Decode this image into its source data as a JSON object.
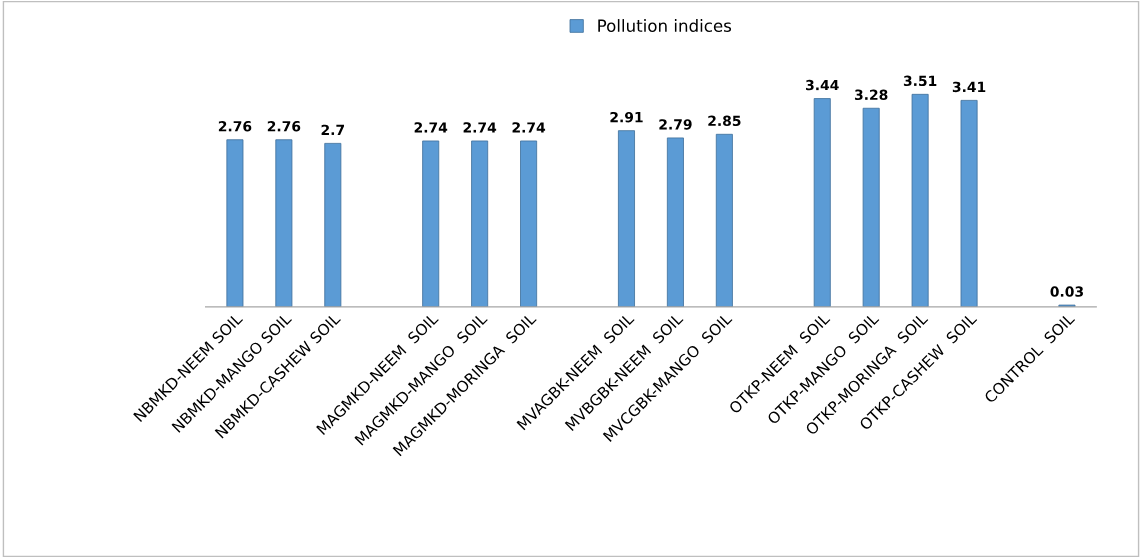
{
  "chart_data": {
    "type": "bar",
    "categories": [
      "NBMKD-NEEM SOIL",
      "NBMKD-MANGO SOIL",
      "NBMKD-CASHEW SOIL",
      null,
      "MAGMKD-NEEM  SOIL",
      "MAGMKD-MANGO  SOIL",
      "MAGMKD-MORINGA  SOIL",
      null,
      "MVAGBK-NEEM  SOIL",
      "MVBGBK-NEEM  SOIL",
      "MVCGBK-MANGO  SOIL",
      null,
      "OTKP-NEEM  SOIL",
      "OTKP-MANGO  SOIL",
      "OTKP-MORINGA  SOIL",
      "OTKP-CASHEW  SOIL",
      null,
      "CONTROL  SOIL"
    ],
    "series": [
      {
        "name": "Pollution indices",
        "color": "#5b9bd5",
        "values": [
          2.76,
          2.76,
          2.7,
          null,
          2.74,
          2.74,
          2.74,
          null,
          2.91,
          2.79,
          2.85,
          null,
          3.44,
          3.28,
          3.51,
          3.41,
          null,
          0.03
        ]
      }
    ],
    "data_labels": true,
    "legend": "top",
    "grid": false,
    "tick_labels": "x"
  }
}
